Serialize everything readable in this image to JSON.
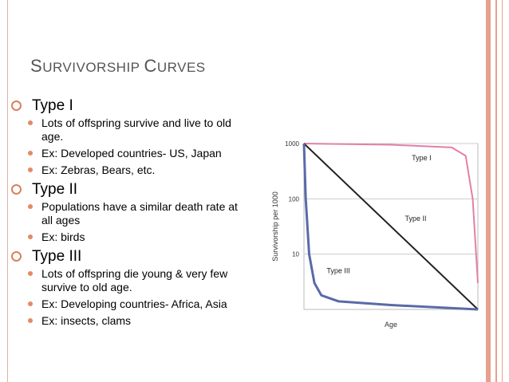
{
  "title": {
    "first_initial": "S",
    "first_rest": "URVIVORSHIP",
    "second_initial": "C",
    "second_rest": "URVES"
  },
  "bullets": [
    {
      "text": "Type I",
      "items": [
        "Lots of offspring survive and live to old age.",
        "Ex:  Developed countries- US, Japan",
        "Ex:  Zebras, Bears, etc."
      ]
    },
    {
      "text": "Type II",
      "items": [
        "Populations have a similar death rate at all ages",
        "Ex:  birds"
      ]
    },
    {
      "text": "Type III",
      "items": [
        "Lots of offspring die young & very few survive to old age.",
        "Ex:  Developing countries- Africa, Asia",
        "Ex:  insects, clams"
      ]
    }
  ],
  "chart_data": {
    "type": "line",
    "title": "",
    "xlabel": "Age",
    "ylabel": "Survivorship per 1000",
    "yscale": "log",
    "ylim": [
      1,
      1000
    ],
    "ytick_labels": [
      "1000",
      "100",
      "10"
    ],
    "grid": true,
    "legend": "none (series labeled directly on chart)",
    "series": [
      {
        "name": "Type I",
        "color": "#e37fa8",
        "x": [
          0,
          0.5,
          0.85,
          0.93,
          0.97,
          1.0
        ],
        "y": [
          1000,
          950,
          850,
          600,
          100,
          3
        ]
      },
      {
        "name": "Type II",
        "color": "#222222",
        "x": [
          0,
          1.0
        ],
        "y": [
          1000,
          1
        ]
      },
      {
        "name": "Type III",
        "color": "#5a6aa8",
        "x": [
          0,
          0.01,
          0.03,
          0.06,
          0.1,
          0.2,
          0.5,
          1.0
        ],
        "y": [
          1000,
          100,
          10,
          3,
          1.8,
          1.4,
          1.2,
          1
        ]
      }
    ]
  }
}
